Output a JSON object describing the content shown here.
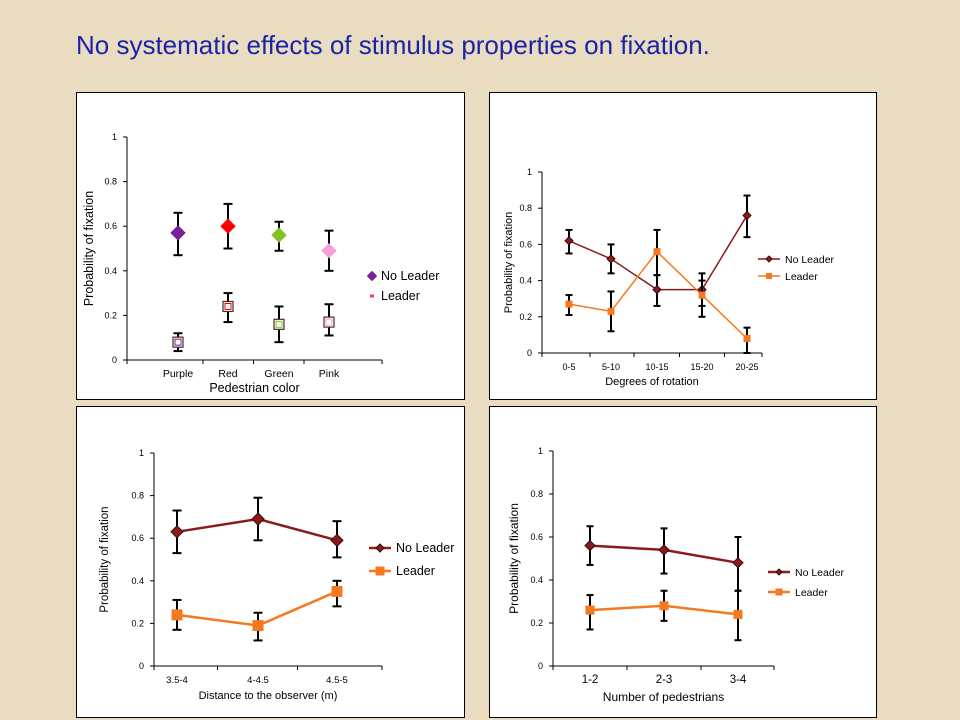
{
  "slide": {
    "title": "No systematic effects of stimulus properties on fixation."
  },
  "chart_data": [
    {
      "type": "scatter",
      "title": "",
      "xlabel": "Pedestrian color",
      "ylabel": "Probability of fixation",
      "ylim": [
        0,
        1
      ],
      "yticks": [
        "0",
        "0.2",
        "0.4",
        "0.6",
        "0.8",
        "1"
      ],
      "categories": [
        "Purple",
        "Red",
        "Green",
        "Pink"
      ],
      "connected": false,
      "point_colors": [
        "#7a1f9a",
        "#ff0000",
        "#7fc41f",
        "#f7a0d8"
      ],
      "legend_position": "right",
      "series": [
        {
          "name": "No Leader",
          "marker": "diamond",
          "filled": true,
          "values": [
            0.57,
            0.6,
            0.56,
            0.49
          ],
          "err_lo": [
            0.47,
            0.5,
            0.49,
            0.4
          ],
          "err_hi": [
            0.66,
            0.7,
            0.62,
            0.58
          ],
          "legend_color": "#7a1f9a"
        },
        {
          "name": "Leader",
          "marker": "square",
          "filled": false,
          "values": [
            0.08,
            0.24,
            0.16,
            0.17
          ],
          "err_lo": [
            0.04,
            0.17,
            0.08,
            0.11
          ],
          "err_hi": [
            0.12,
            0.3,
            0.24,
            0.25
          ],
          "legend_color": "#ff3399"
        }
      ]
    },
    {
      "type": "line",
      "title": "",
      "xlabel": "Degrees of rotation",
      "ylabel": "Probability of fixation",
      "ylim": [
        0,
        1
      ],
      "yticks": [
        "0",
        "0.2",
        "0.4",
        "0.6",
        "0.8",
        "1"
      ],
      "categories": [
        "0-5",
        "5-10",
        "10-15",
        "15-20",
        "20-25"
      ],
      "legend_position": "right",
      "series": [
        {
          "name": "No Leader",
          "color": "#8b1a1a",
          "marker": "diamond",
          "values": [
            0.62,
            0.52,
            0.35,
            0.35,
            0.76
          ],
          "err_lo": [
            0.55,
            0.44,
            0.26,
            0.2,
            0.64
          ],
          "err_hi": [
            0.68,
            0.6,
            0.43,
            0.44,
            0.87
          ]
        },
        {
          "name": "Leader",
          "color": "#f47920",
          "marker": "square",
          "values": [
            0.27,
            0.23,
            0.56,
            0.32,
            0.08
          ],
          "err_lo": [
            0.21,
            0.12,
            0.43,
            0.26,
            0.0
          ],
          "err_hi": [
            0.32,
            0.34,
            0.68,
            0.4,
            0.14
          ]
        }
      ]
    },
    {
      "type": "line",
      "title": "",
      "xlabel": "Distance to the observer (m)",
      "ylabel": "Probability of fixation",
      "ylim": [
        0,
        1
      ],
      "yticks": [
        "0",
        "0.2",
        "0.4",
        "0.6",
        "0.8",
        "1"
      ],
      "categories": [
        "3.5-4",
        "4-4.5",
        "4.5-5"
      ],
      "legend_position": "right",
      "series": [
        {
          "name": "No Leader",
          "color": "#8b1a1a",
          "marker": "diamond",
          "values": [
            0.63,
            0.69,
            0.59
          ],
          "err_lo": [
            0.53,
            0.59,
            0.51
          ],
          "err_hi": [
            0.73,
            0.79,
            0.68
          ]
        },
        {
          "name": "Leader",
          "color": "#f47920",
          "marker": "square",
          "values": [
            0.24,
            0.19,
            0.35
          ],
          "err_lo": [
            0.17,
            0.12,
            0.28
          ],
          "err_hi": [
            0.31,
            0.25,
            0.4
          ]
        }
      ]
    },
    {
      "type": "line",
      "title": "",
      "xlabel": "Number of pedestrians",
      "ylabel": "Probability of fixation",
      "ylim": [
        0,
        1
      ],
      "yticks": [
        "0",
        "0.2",
        "0.4",
        "0.6",
        "0.8",
        "1"
      ],
      "categories": [
        "1-2",
        "2-3",
        "3-4"
      ],
      "legend_position": "right",
      "series": [
        {
          "name": "No Leader",
          "color": "#8b1a1a",
          "marker": "diamond",
          "values": [
            0.56,
            0.54,
            0.48
          ],
          "err_lo": [
            0.47,
            0.43,
            0.35
          ],
          "err_hi": [
            0.65,
            0.64,
            0.6
          ]
        },
        {
          "name": "Leader",
          "color": "#f47920",
          "marker": "square",
          "values": [
            0.26,
            0.28,
            0.24
          ],
          "err_lo": [
            0.17,
            0.21,
            0.12
          ],
          "err_hi": [
            0.33,
            0.35,
            0.35
          ]
        }
      ]
    }
  ]
}
